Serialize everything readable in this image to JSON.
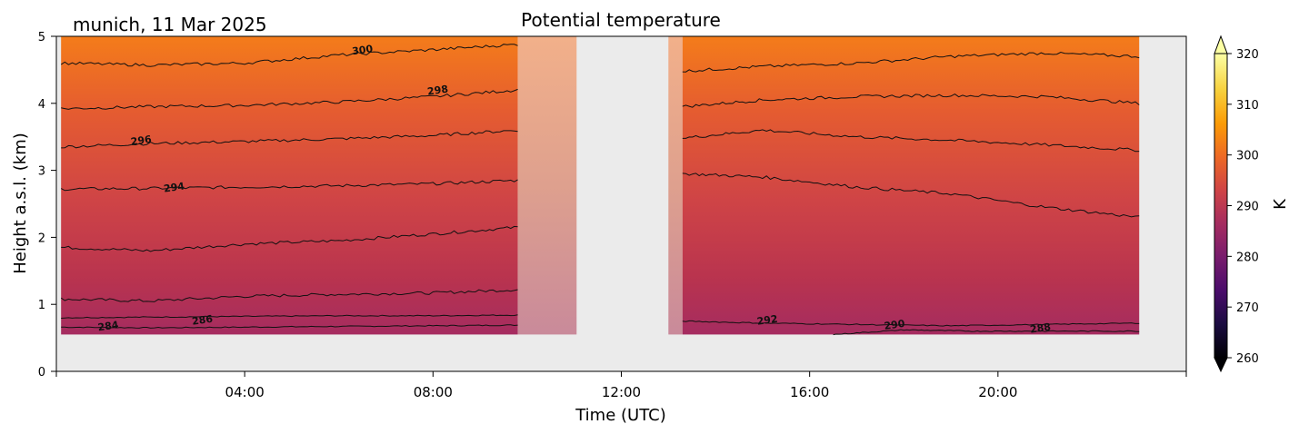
{
  "chart_data": {
    "type": "heatmap",
    "title": "Potential temperature",
    "subtitle": "munich, 11 Mar 2025",
    "xlabel": "Time (UTC)",
    "ylabel": "Height a.s.l. (km)",
    "xlim_hours": [
      0,
      24
    ],
    "ylim_km": [
      0,
      5
    ],
    "x_ticks": [
      {
        "hour": 4,
        "label": "04:00"
      },
      {
        "hour": 8,
        "label": "08:00"
      },
      {
        "hour": 12,
        "label": "12:00"
      },
      {
        "hour": 16,
        "label": "16:00"
      },
      {
        "hour": 20,
        "label": "20:00"
      }
    ],
    "x_minor_ticks_hours": [
      0,
      24
    ],
    "y_ticks": [
      {
        "km": 0,
        "label": "0"
      },
      {
        "km": 1,
        "label": "1"
      },
      {
        "km": 2,
        "label": "2"
      },
      {
        "km": 3,
        "label": "3"
      },
      {
        "km": 4,
        "label": "4"
      },
      {
        "km": 5,
        "label": "5"
      }
    ],
    "colorbar": {
      "label": "K",
      "range": [
        260,
        320
      ],
      "extend": "both",
      "ticks": [
        {
          "value": 260,
          "label": "260"
        },
        {
          "value": 270,
          "label": "270"
        },
        {
          "value": 280,
          "label": "280"
        },
        {
          "value": 290,
          "label": "290"
        },
        {
          "value": 300,
          "label": "300"
        },
        {
          "value": 310,
          "label": "310"
        },
        {
          "value": 320,
          "label": "320"
        }
      ],
      "colormap": "inferno",
      "stops": [
        "#000004",
        "#1b0c41",
        "#4a0c6b",
        "#781c6d",
        "#a52c60",
        "#cf4446",
        "#ed6925",
        "#fb9b06",
        "#f7d13d",
        "#fcffa4"
      ]
    },
    "background_color": "#ebebeb",
    "data_floor_km": 0.55,
    "segments": [
      {
        "start_hour": 0.1,
        "end_hour": 9.8,
        "type": "data"
      },
      {
        "start_hour": 9.8,
        "end_hour": 11.05,
        "type": "sparse"
      },
      {
        "start_hour": 13.0,
        "end_hour": 13.3,
        "type": "sparse"
      },
      {
        "start_hour": 13.3,
        "end_hour": 23.0,
        "type": "data"
      }
    ],
    "contours": [
      {
        "level": 284,
        "points": [
          [
            0.1,
            0.66
          ],
          [
            2,
            0.65
          ],
          [
            4,
            0.66
          ],
          [
            6,
            0.67
          ],
          [
            8,
            0.68
          ],
          [
            9.8,
            0.69
          ]
        ]
      },
      {
        "level": 286,
        "points": [
          [
            0.1,
            0.8
          ],
          [
            2,
            0.81
          ],
          [
            4,
            0.82
          ],
          [
            6,
            0.83
          ],
          [
            8,
            0.83
          ],
          [
            9.8,
            0.84
          ]
        ]
      },
      {
        "level": 288,
        "points": [
          [
            0.1,
            1.08
          ],
          [
            2,
            1.05
          ],
          [
            4,
            1.12
          ],
          [
            6,
            1.15
          ],
          [
            8,
            1.17
          ],
          [
            9.8,
            1.22
          ]
        ]
      },
      {
        "level": 290,
        "points": [
          [
            0.1,
            1.85
          ],
          [
            2,
            1.8
          ],
          [
            4,
            1.9
          ],
          [
            6,
            1.95
          ],
          [
            8,
            2.05
          ],
          [
            9.8,
            2.15
          ]
        ]
      },
      {
        "level": 294,
        "points": [
          [
            0.1,
            2.72
          ],
          [
            2,
            2.73
          ],
          [
            4,
            2.75
          ],
          [
            6,
            2.77
          ],
          [
            8,
            2.8
          ],
          [
            9.8,
            2.85
          ]
        ]
      },
      {
        "level": 296,
        "points": [
          [
            0.1,
            3.35
          ],
          [
            2,
            3.4
          ],
          [
            4,
            3.43
          ],
          [
            6,
            3.47
          ],
          [
            8,
            3.52
          ],
          [
            9.8,
            3.6
          ]
        ]
      },
      {
        "level": 298,
        "points": [
          [
            0.1,
            3.92
          ],
          [
            2,
            3.95
          ],
          [
            4,
            3.97
          ],
          [
            6,
            4.02
          ],
          [
            8,
            4.1
          ],
          [
            9.8,
            4.2
          ]
        ]
      },
      {
        "level": 300,
        "points": [
          [
            0.1,
            4.6
          ],
          [
            2,
            4.57
          ],
          [
            4,
            4.6
          ],
          [
            6,
            4.72
          ],
          [
            8,
            4.8
          ],
          [
            9.8,
            4.88
          ]
        ]
      },
      {
        "level": 300,
        "points": [
          [
            13.3,
            4.48
          ],
          [
            15,
            4.55
          ],
          [
            17,
            4.6
          ],
          [
            19,
            4.7
          ],
          [
            21,
            4.75
          ],
          [
            23,
            4.7
          ]
        ]
      },
      {
        "level": 298,
        "points": [
          [
            13.3,
            3.95
          ],
          [
            15,
            4.05
          ],
          [
            17,
            4.1
          ],
          [
            19,
            4.12
          ],
          [
            21,
            4.1
          ],
          [
            23,
            4.0
          ]
        ]
      },
      {
        "level": 296,
        "points": [
          [
            13.3,
            3.48
          ],
          [
            15,
            3.6
          ],
          [
            17,
            3.5
          ],
          [
            19,
            3.45
          ],
          [
            21,
            3.38
          ],
          [
            23,
            3.3
          ]
        ]
      },
      {
        "level": 294,
        "points": [
          [
            13.3,
            2.95
          ],
          [
            15,
            2.9
          ],
          [
            17,
            2.75
          ],
          [
            19,
            2.65
          ],
          [
            21,
            2.45
          ],
          [
            23,
            2.3
          ]
        ]
      },
      {
        "level": 292,
        "points": [
          [
            13.3,
            0.75
          ],
          [
            15,
            0.72
          ],
          [
            17,
            0.7
          ],
          [
            19,
            0.68
          ],
          [
            21,
            0.7
          ],
          [
            23,
            0.72
          ]
        ]
      },
      {
        "level": 290,
        "points": [
          [
            16.5,
            0.55
          ],
          [
            18,
            0.62
          ],
          [
            19.5,
            0.6
          ],
          [
            21,
            0.6
          ],
          [
            23,
            0.6
          ]
        ]
      }
    ],
    "contour_labels": [
      {
        "text": "300",
        "hour": 6.5,
        "km": 4.8
      },
      {
        "text": "298",
        "hour": 8.1,
        "km": 4.2
      },
      {
        "text": "296",
        "hour": 1.8,
        "km": 3.45
      },
      {
        "text": "294",
        "hour": 2.5,
        "km": 2.75
      },
      {
        "text": "284",
        "hour": 1.1,
        "km": 0.68
      },
      {
        "text": "286",
        "hour": 3.1,
        "km": 0.77
      },
      {
        "text": "292",
        "hour": 15.1,
        "km": 0.77
      },
      {
        "text": "290",
        "hour": 17.8,
        "km": 0.7
      },
      {
        "text": "288",
        "hour": 20.9,
        "km": 0.65
      }
    ]
  }
}
